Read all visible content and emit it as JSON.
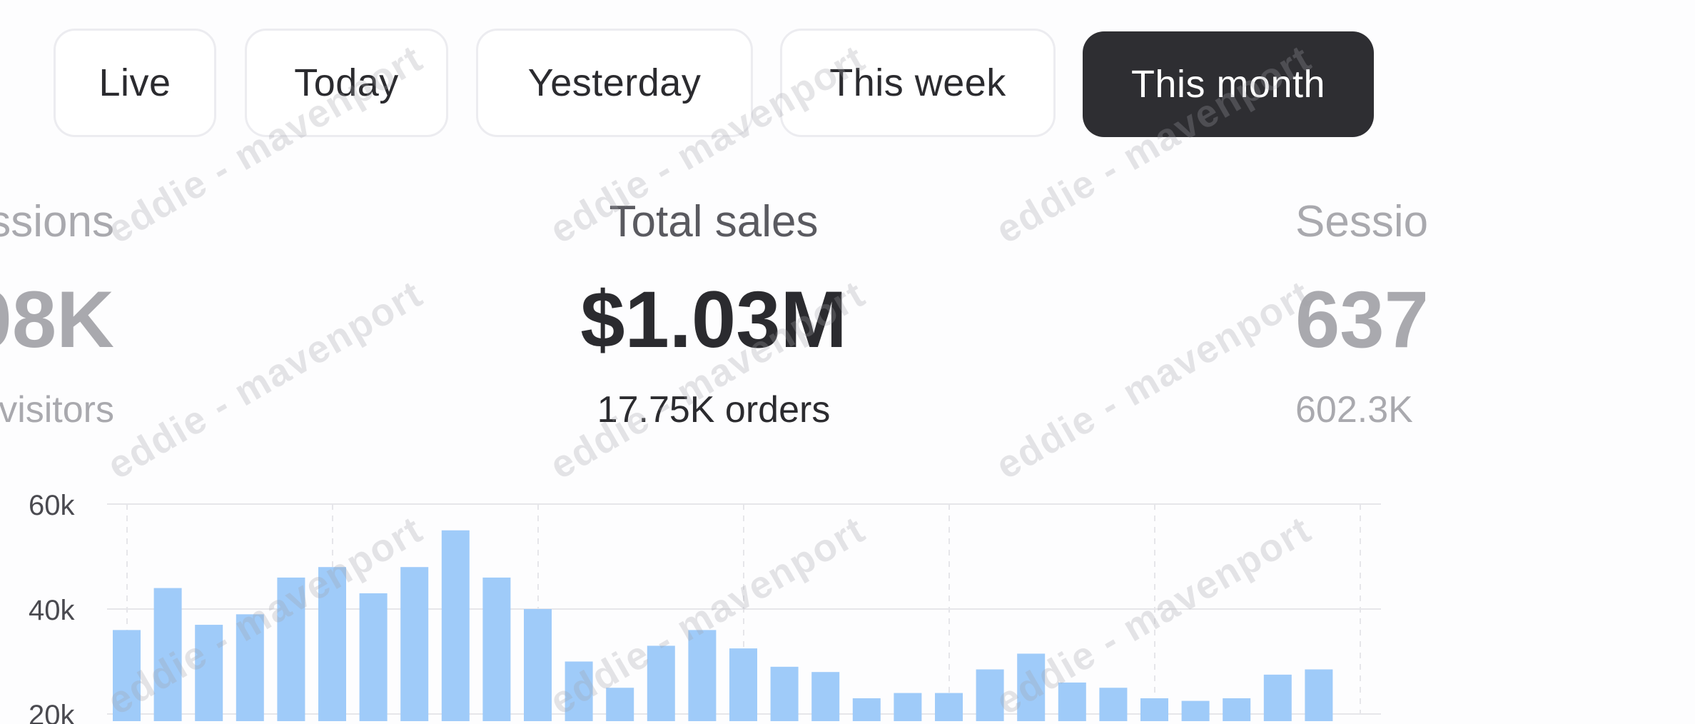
{
  "filters": [
    {
      "label": "Live",
      "active": false
    },
    {
      "label": "Today",
      "active": false
    },
    {
      "label": "Yesterday",
      "active": false
    },
    {
      "label": "This week",
      "active": false
    },
    {
      "label": "This month",
      "active": true
    }
  ],
  "stats": {
    "left": {
      "label": "ssions",
      "value": "08K",
      "sub": "visitors"
    },
    "center": {
      "label": "Total sales",
      "value": "$1.03M",
      "sub": "17.75K orders"
    },
    "right": {
      "label": "Sessio",
      "value": "637",
      "sub": "602.3K"
    }
  },
  "watermark": "eddie - mavenport",
  "colors": {
    "bar": "#9fcbf9",
    "active_pill": "#2e2e32",
    "grid": "#e6e6ea"
  },
  "chart_data": {
    "type": "bar",
    "ylim": [
      0,
      60000
    ],
    "y_ticks": [
      {
        "value": 60000,
        "label": "60k"
      },
      {
        "value": 40000,
        "label": "40k"
      },
      {
        "value": 20000,
        "label": "20k"
      }
    ],
    "grid": true,
    "values": [
      36000,
      44000,
      37000,
      39000,
      46000,
      48000,
      43000,
      48000,
      55000,
      46000,
      40000,
      30000,
      25000,
      33000,
      36000,
      32500,
      29000,
      28000,
      23000,
      24000,
      24000,
      28500,
      31500,
      26000,
      25000,
      23000,
      22500,
      23000,
      27500,
      28500
    ]
  }
}
